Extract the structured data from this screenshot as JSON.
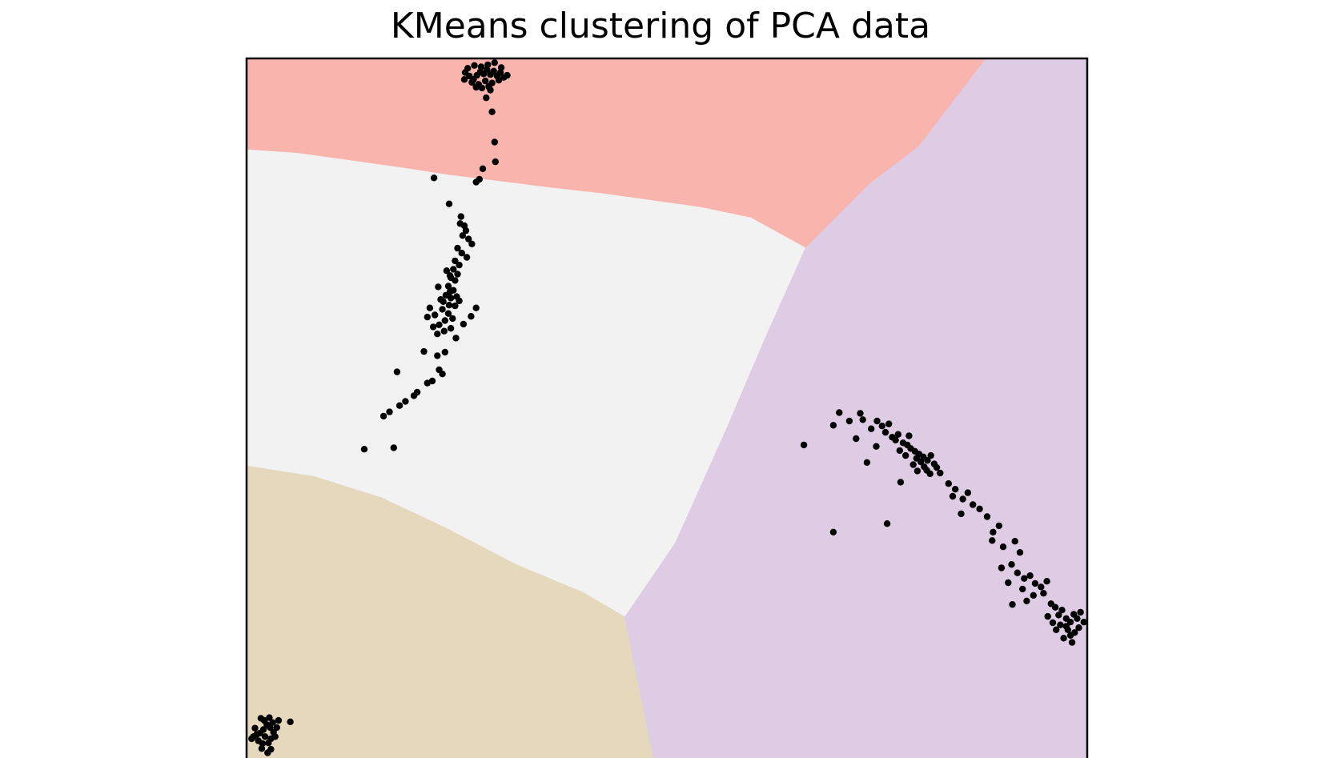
{
  "chart_data": {
    "type": "scatter",
    "title": "KMeans clustering of PCA data",
    "xlabel": "",
    "ylabel": "",
    "xticks": "none",
    "yticks": "none",
    "grid": false,
    "legend": "none",
    "xlim": [
      0,
      100
    ],
    "ylim": [
      0,
      100
    ],
    "point_color": "#000000",
    "regions": [
      {
        "name": "top",
        "color": "#f9b4ae",
        "boundary": [
          [
            0,
            100
          ],
          [
            0,
            87
          ],
          [
            6,
            86.5
          ],
          [
            12,
            85.5
          ],
          [
            18,
            84.5
          ],
          [
            24,
            83.4
          ],
          [
            30,
            82.5
          ],
          [
            36,
            81.6
          ],
          [
            42,
            80.8
          ],
          [
            48,
            79.8
          ],
          [
            54,
            78.8
          ],
          [
            60,
            77.3
          ],
          [
            66.5,
            73
          ],
          [
            74,
            82
          ],
          [
            80,
            87.5
          ],
          [
            88,
            100
          ]
        ]
      },
      {
        "name": "middle",
        "color": "#f2f2f2",
        "boundary": [
          [
            0,
            87
          ],
          [
            6,
            86.5
          ],
          [
            12,
            85.5
          ],
          [
            18,
            84.5
          ],
          [
            24,
            83.4
          ],
          [
            30,
            82.5
          ],
          [
            36,
            81.6
          ],
          [
            42,
            80.8
          ],
          [
            48,
            79.8
          ],
          [
            54,
            78.8
          ],
          [
            60,
            77.3
          ],
          [
            66.5,
            73
          ],
          [
            62,
            61
          ],
          [
            57,
            47
          ],
          [
            51,
            31
          ],
          [
            45,
            20.5
          ],
          [
            40,
            24
          ],
          [
            32,
            28
          ],
          [
            24,
            33
          ],
          [
            16,
            37.5
          ],
          [
            8,
            40.5
          ],
          [
            0,
            42
          ]
        ]
      },
      {
        "name": "bottom-left",
        "color": "#e6d8bd",
        "boundary": [
          [
            0,
            42
          ],
          [
            8,
            40.5
          ],
          [
            16,
            37.5
          ],
          [
            24,
            33
          ],
          [
            32,
            28
          ],
          [
            40,
            24
          ],
          [
            45,
            20.5
          ],
          [
            48.5,
            0
          ],
          [
            0,
            0
          ]
        ]
      },
      {
        "name": "right",
        "color": "#decbe4",
        "boundary": [
          [
            66.5,
            73
          ],
          [
            74,
            82
          ],
          [
            80,
            87.5
          ],
          [
            88,
            100
          ],
          [
            100,
            100
          ],
          [
            100,
            0
          ],
          [
            48.5,
            0
          ],
          [
            45,
            20.5
          ],
          [
            51,
            31
          ],
          [
            57,
            47
          ],
          [
            62,
            61
          ]
        ]
      }
    ],
    "series": [
      {
        "points": [
          [
            26,
            98
          ],
          [
            26.5,
            97.5
          ],
          [
            27,
            97
          ],
          [
            27.4,
            97.6
          ],
          [
            27.8,
            98.1
          ],
          [
            28.2,
            97.8
          ],
          [
            28.6,
            98.4
          ],
          [
            29,
            97.7
          ],
          [
            29.4,
            98.2
          ],
          [
            29.8,
            97.5
          ],
          [
            30.2,
            98
          ],
          [
            30.6,
            97.3
          ],
          [
            26.8,
            96.6
          ],
          [
            27.6,
            96.3
          ],
          [
            28.4,
            96.8
          ],
          [
            29.2,
            96.5
          ],
          [
            30,
            96.9
          ],
          [
            26.3,
            98.6
          ],
          [
            27.1,
            99
          ],
          [
            27.9,
            98.8
          ],
          [
            28.7,
            99.1
          ],
          [
            29.5,
            99.4
          ],
          [
            30.3,
            98.7
          ],
          [
            25.9,
            97
          ],
          [
            31,
            97.6
          ],
          [
            28,
            95.8
          ],
          [
            29,
            95.5
          ],
          [
            27.3,
            95.9
          ],
          [
            28.8,
            96
          ],
          [
            28.5,
            94.4
          ],
          [
            29.2,
            92.4
          ],
          [
            29.5,
            88.1
          ],
          [
            29.6,
            85.3
          ],
          [
            28.1,
            84.3
          ],
          [
            27.7,
            82.8
          ],
          [
            27.3,
            82.4
          ],
          [
            22.3,
            83
          ]
        ]
      },
      {
        "points": [
          [
            25.4,
            76.5
          ],
          [
            25.9,
            76.2
          ],
          [
            26.1,
            75.5
          ],
          [
            25.7,
            74.8
          ],
          [
            26.4,
            74.3
          ],
          [
            26.8,
            73.6
          ],
          [
            25.1,
            73
          ],
          [
            25.6,
            72.3
          ],
          [
            26.2,
            71.7
          ],
          [
            24.8,
            71.2
          ],
          [
            25.3,
            70.6
          ],
          [
            24.6,
            70
          ],
          [
            25.1,
            69.3
          ],
          [
            24.3,
            68.8
          ],
          [
            24.8,
            68.4
          ],
          [
            24,
            67.6
          ],
          [
            24.6,
            67
          ],
          [
            23.7,
            66.3
          ],
          [
            24.3,
            65.9
          ],
          [
            23.4,
            65.4
          ],
          [
            24.1,
            64.9
          ],
          [
            23.3,
            64.3
          ],
          [
            24,
            63.7
          ],
          [
            24.5,
            63
          ],
          [
            23.6,
            62.7
          ],
          [
            22.9,
            62.1
          ],
          [
            24.2,
            66.8
          ],
          [
            25,
            66.1
          ],
          [
            24.8,
            64.8
          ],
          [
            25.3,
            65.5
          ],
          [
            23.8,
            69.8
          ],
          [
            24.2,
            69.1
          ],
          [
            22.8,
            67.5
          ],
          [
            23.1,
            65.7
          ],
          [
            21.8,
            64.5
          ],
          [
            21.5,
            63.2
          ],
          [
            22.4,
            63.5
          ],
          [
            22.2,
            61.8
          ],
          [
            22.7,
            60.8
          ],
          [
            23.5,
            61.2
          ],
          [
            24.3,
            61.6
          ],
          [
            24.9,
            60.2
          ],
          [
            27.3,
            64.5
          ],
          [
            26.7,
            63.3
          ],
          [
            25.8,
            62.2
          ],
          [
            23.6,
            58.2
          ],
          [
            22.7,
            57.7
          ],
          [
            21.1,
            58.3
          ],
          [
            22.9,
            55.7
          ],
          [
            23.3,
            55.1
          ],
          [
            22.1,
            54.1
          ],
          [
            21.5,
            53.8
          ],
          [
            20.3,
            52.5
          ],
          [
            19.9,
            52
          ],
          [
            18.9,
            51.2
          ],
          [
            18.2,
            50.6
          ],
          [
            17,
            49.7
          ],
          [
            16.3,
            49.1
          ],
          [
            17.9,
            55.4
          ],
          [
            14,
            44.4
          ],
          [
            17.5,
            44.6
          ],
          [
            24.1,
            79.3
          ],
          [
            25.5,
            77.5
          ]
        ]
      },
      {
        "points": [
          [
            2,
            4.5
          ],
          [
            2.4,
            5.2
          ],
          [
            2.8,
            4.8
          ],
          [
            1.6,
            4
          ],
          [
            1.2,
            3.8
          ],
          [
            2.2,
            3.5
          ],
          [
            2.9,
            3.2
          ],
          [
            1.9,
            2.5
          ],
          [
            2.6,
            2.6
          ],
          [
            1.4,
            2.9
          ],
          [
            0.8,
            3.5
          ],
          [
            3.2,
            4.1
          ],
          [
            3.6,
            4.8
          ],
          [
            2.1,
            5.8
          ],
          [
            2.7,
            6.2
          ],
          [
            3.1,
            5.5
          ],
          [
            1.7,
            6.1
          ],
          [
            1,
            4.7
          ],
          [
            0.6,
            3.2
          ],
          [
            3.4,
            3.5
          ],
          [
            2.5,
            1.2
          ],
          [
            5.2,
            5.6
          ],
          [
            3.8,
            5.8
          ],
          [
            1.8,
            1.8
          ],
          [
            2.9,
            1.7
          ]
        ]
      },
      {
        "points": [
          [
            79,
            44.5
          ],
          [
            79.5,
            44.1
          ],
          [
            80,
            43.7
          ],
          [
            80.5,
            43.3
          ],
          [
            81,
            42.8
          ],
          [
            80.2,
            42.6
          ],
          [
            79.7,
            43.1
          ],
          [
            81.4,
            43.5
          ],
          [
            78.6,
            45
          ],
          [
            78.1,
            45.3
          ],
          [
            79.3,
            42.2
          ],
          [
            80.6,
            41.9
          ],
          [
            81.8,
            42.3
          ],
          [
            82.1,
            41.8
          ],
          [
            80.9,
            41.4
          ],
          [
            78.4,
            43.5
          ],
          [
            77.7,
            44.2
          ],
          [
            77.2,
            45.7
          ],
          [
            76.8,
            46.1
          ],
          [
            77.5,
            46.5
          ],
          [
            78.8,
            46.3
          ],
          [
            79.8,
            41.3
          ],
          [
            81.3,
            40.9
          ],
          [
            82.5,
            41
          ],
          [
            76,
            46.8
          ],
          [
            75.6,
            47.7
          ],
          [
            74.3,
            47.3
          ],
          [
            73.3,
            48.6
          ],
          [
            72.5,
            45.9
          ],
          [
            71.7,
            48.4
          ],
          [
            73.8,
            42.5
          ],
          [
            74.9,
            44.8
          ],
          [
            66.3,
            45
          ],
          [
            69.8,
            47.8
          ],
          [
            70.5,
            49.6
          ],
          [
            73,
            49.5
          ],
          [
            75,
            48.4
          ],
          [
            76.4,
            48
          ],
          [
            77.8,
            39.7
          ],
          [
            76.2,
            33.8
          ],
          [
            69.8,
            32.6
          ],
          [
            83.5,
            39.5
          ],
          [
            84.3,
            38.7
          ],
          [
            84,
            37.7
          ],
          [
            85.2,
            37.3
          ],
          [
            85.8,
            38.2
          ],
          [
            86.4,
            36.5
          ],
          [
            85,
            35.2
          ],
          [
            87.2,
            35.9
          ],
          [
            88.1,
            34.8
          ],
          [
            89.5,
            33.5
          ],
          [
            88.7,
            31.4
          ],
          [
            90,
            30.5
          ],
          [
            91.4,
            31.3
          ],
          [
            92,
            29.7
          ],
          [
            91,
            28
          ],
          [
            89.8,
            27.5
          ],
          [
            91.7,
            26.8
          ],
          [
            88.8,
            32.6
          ],
          [
            92.5,
            26
          ],
          [
            93.2,
            26.4
          ],
          [
            93.8,
            25.3
          ],
          [
            94.5,
            24.8
          ],
          [
            92.3,
            24.5
          ],
          [
            93.6,
            23.6
          ],
          [
            94.8,
            23.9
          ],
          [
            95.2,
            25.6
          ],
          [
            92.8,
            22.8
          ],
          [
            90.6,
            25.4
          ],
          [
            91.1,
            22.3
          ],
          [
            95.7,
            22.4
          ],
          [
            96.2,
            21.9
          ],
          [
            96.6,
            20.8
          ],
          [
            97,
            21.5
          ],
          [
            97.5,
            20.3
          ],
          [
            98,
            19.8
          ],
          [
            98.4,
            20.9
          ],
          [
            98.8,
            20.3
          ],
          [
            99.2,
            21.2
          ],
          [
            96.8,
            19.4
          ],
          [
            97.7,
            18.7
          ],
          [
            98.5,
            18.3
          ],
          [
            99,
            19
          ],
          [
            99.6,
            19.8
          ],
          [
            95.9,
            19.7
          ],
          [
            96.3,
            18.7
          ],
          [
            97.2,
            17.5
          ],
          [
            98,
            17.9
          ],
          [
            98.2,
            16.9
          ],
          [
            97.5,
            19.2
          ],
          [
            95.3,
            20.6
          ]
        ]
      }
    ]
  }
}
